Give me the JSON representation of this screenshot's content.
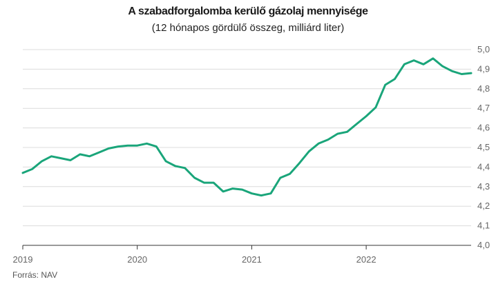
{
  "chart_data": {
    "type": "line",
    "title": "A szabadforgalomba kerülő gázolaj mennyisége",
    "subtitle": "(12 hónapos gördülő összeg, milliárd liter)",
    "xlabel": "",
    "ylabel": "",
    "x_ticks": [
      "2019",
      "2020",
      "2021",
      "2022"
    ],
    "y_ticks": [
      "4,0",
      "4,1",
      "4,2",
      "4,3",
      "4,4",
      "4,5",
      "4,6",
      "4,7",
      "4,8",
      "4,9",
      "5,0"
    ],
    "ylim": [
      4.0,
      5.0
    ],
    "xlim": [
      2019.0,
      2022.9167
    ],
    "grid": true,
    "y_axis_side": "right",
    "series": [
      {
        "color": "#1aa57a",
        "x": [
          2019.0,
          2019.0833,
          2019.1667,
          2019.25,
          2019.3333,
          2019.4167,
          2019.5,
          2019.5833,
          2019.6667,
          2019.75,
          2019.8333,
          2019.9167,
          2020.0,
          2020.0833,
          2020.1667,
          2020.25,
          2020.3333,
          2020.4167,
          2020.5,
          2020.5833,
          2020.6667,
          2020.75,
          2020.8333,
          2020.9167,
          2021.0,
          2021.0833,
          2021.1667,
          2021.25,
          2021.3333,
          2021.4167,
          2021.5,
          2021.5833,
          2021.6667,
          2021.75,
          2021.8333,
          2021.9167,
          2022.0,
          2022.0833,
          2022.1667,
          2022.25,
          2022.3333,
          2022.4167,
          2022.5,
          2022.5833,
          2022.6667,
          2022.75,
          2022.8333,
          2022.9167
        ],
        "values": [
          4.37,
          4.39,
          4.43,
          4.455,
          4.445,
          4.435,
          4.465,
          4.455,
          4.475,
          4.495,
          4.505,
          4.51,
          4.51,
          4.52,
          4.505,
          4.43,
          4.405,
          4.395,
          4.345,
          4.32,
          4.32,
          4.275,
          4.29,
          4.285,
          4.265,
          4.255,
          4.265,
          4.345,
          4.365,
          4.42,
          4.48,
          4.52,
          4.54,
          4.57,
          4.58,
          4.62,
          4.66,
          4.705,
          4.82,
          4.85,
          4.925,
          4.945,
          4.925,
          4.955,
          4.915,
          4.89,
          4.875,
          4.88
        ]
      }
    ]
  },
  "source": "Forrás: NAV"
}
